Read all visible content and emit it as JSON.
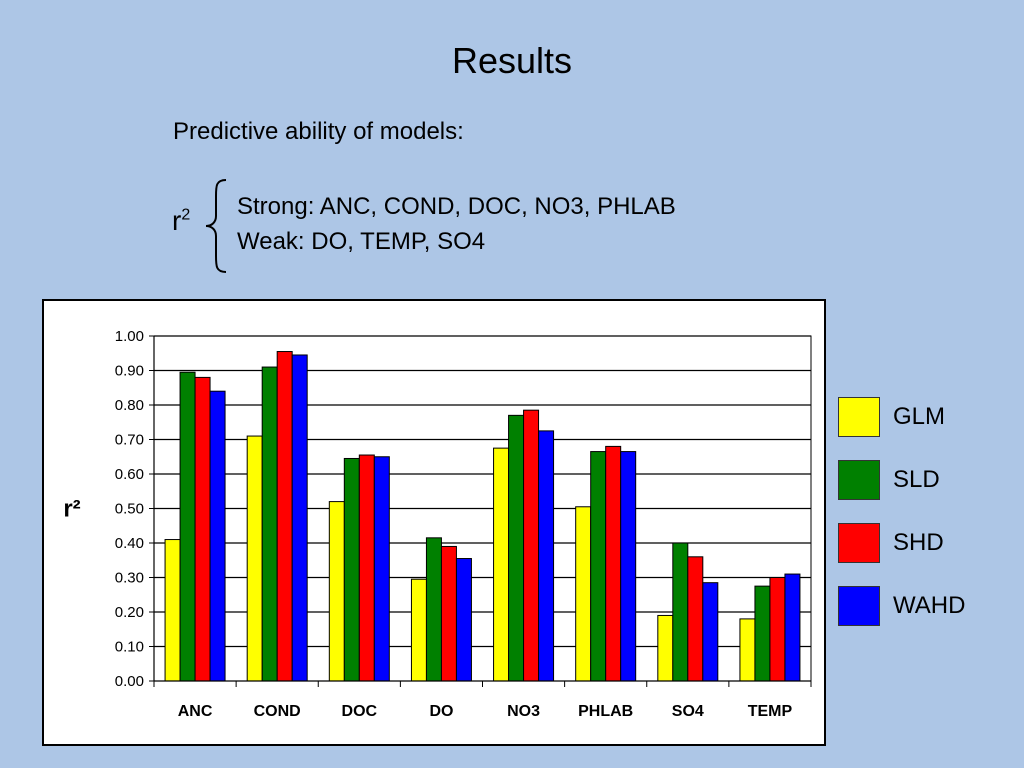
{
  "slide": {
    "title": "Results",
    "intro": "Predictive ability of models:",
    "r2_symbol": "r",
    "r2_exponent": "2",
    "strong_text": "Strong: ANC, COND, DOC, NO3, PHLAB",
    "weak_text": "Weak: DO, TEMP, SO4"
  },
  "chart_data": {
    "type": "bar",
    "ylabel": "r²",
    "xlabel": "",
    "ylim": [
      0,
      1.0
    ],
    "y_ticks": [
      "0.00",
      "0.10",
      "0.20",
      "0.30",
      "0.40",
      "0.50",
      "0.60",
      "0.70",
      "0.80",
      "0.90",
      "1.00"
    ],
    "grid": true,
    "legend_position": "right",
    "categories": [
      "ANC",
      "COND",
      "DOC",
      "DO",
      "NO3",
      "PHLAB",
      "SO4",
      "TEMP"
    ],
    "series": [
      {
        "name": "GLM",
        "color": "#ffff00",
        "values": [
          0.41,
          0.71,
          0.52,
          0.295,
          0.675,
          0.505,
          0.19,
          0.18
        ]
      },
      {
        "name": "SLD",
        "color": "#008000",
        "values": [
          0.895,
          0.91,
          0.645,
          0.415,
          0.77,
          0.665,
          0.4,
          0.275
        ]
      },
      {
        "name": "SHD",
        "color": "#ff0000",
        "values": [
          0.88,
          0.955,
          0.655,
          0.39,
          0.785,
          0.68,
          0.36,
          0.3
        ]
      },
      {
        "name": "WAHD",
        "color": "#0000ff",
        "values": [
          0.84,
          0.945,
          0.65,
          0.355,
          0.725,
          0.665,
          0.285,
          0.31
        ]
      }
    ]
  }
}
